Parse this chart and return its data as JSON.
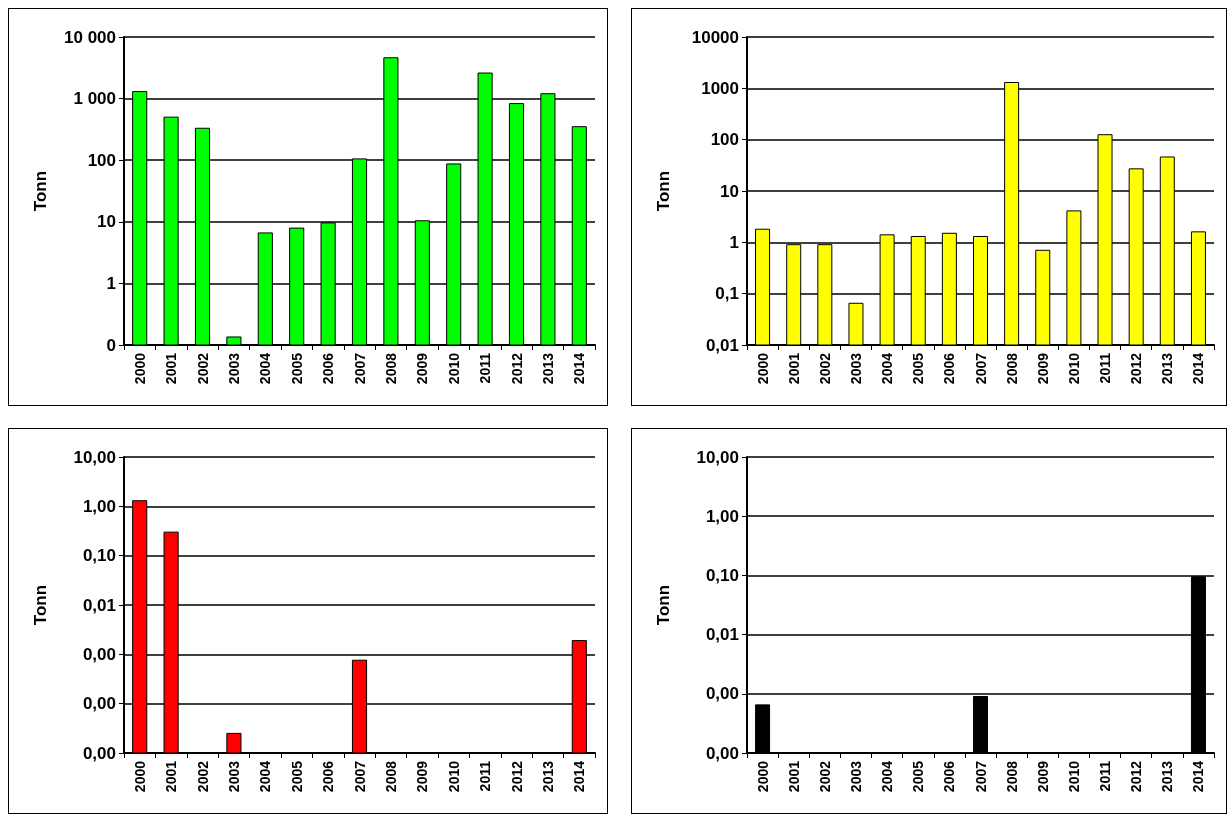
{
  "chart_data": [
    {
      "type": "bar",
      "ylabel": "Tonn",
      "log": true,
      "grid": "y",
      "categories": [
        "2000",
        "2001",
        "2002",
        "2003",
        "2004",
        "2005",
        "2006",
        "2007",
        "2008",
        "2009",
        "2010",
        "2011",
        "2012",
        "2013",
        "2014"
      ],
      "series": [
        {
          "color": "#00ff00",
          "values": [
            1300,
            500,
            330,
            0.135,
            6.6,
            7.9,
            9.6,
            105,
            4600,
            10.4,
            87,
            2600,
            830,
            1200,
            350
          ]
        }
      ],
      "ylim": [
        0.1,
        10000
      ],
      "yticks": [
        {
          "value": 0.1,
          "label": "0"
        },
        1,
        10,
        100,
        {
          "value": 1000,
          "label": "1 000"
        },
        {
          "value": 10000,
          "label": "10 000"
        }
      ]
    },
    {
      "type": "bar",
      "ylabel": "Tonn",
      "log": true,
      "grid": "y",
      "categories": [
        "2000",
        "2001",
        "2002",
        "2003",
        "2004",
        "2005",
        "2006",
        "2007",
        "2008",
        "2009",
        "2010",
        "2011",
        "2012",
        "2013",
        "2014"
      ],
      "series": [
        {
          "color": "#ffff00",
          "values": [
            1.8,
            0.9,
            0.9,
            0.065,
            1.4,
            1.3,
            1.5,
            1.3,
            1300,
            0.7,
            4.1,
            125,
            27,
            46,
            1.6
          ]
        }
      ],
      "ylim": [
        0.01,
        10000
      ],
      "yticks": [
        {
          "value": 0.01,
          "label": "0,01"
        },
        {
          "value": 0.1,
          "label": "0,1"
        },
        1,
        10,
        100,
        1000,
        10000
      ]
    },
    {
      "type": "bar",
      "ylabel": "Tonn",
      "log": true,
      "grid": "y",
      "categories": [
        "2000",
        "2001",
        "2002",
        "2003",
        "2004",
        "2005",
        "2006",
        "2007",
        "2008",
        "2009",
        "2010",
        "2011",
        "2012",
        "2013",
        "2014"
      ],
      "series": [
        {
          "color": "#ff0000",
          "values": [
            1.3,
            0.3,
            null,
            2.5e-05,
            null,
            null,
            null,
            0.00076,
            null,
            null,
            null,
            null,
            null,
            null,
            0.0019
          ]
        }
      ],
      "ylim": [
        1e-05,
        10
      ],
      "yticks": [
        {
          "value": 10,
          "label": "10,00"
        },
        {
          "value": 1,
          "label": "1,00"
        },
        {
          "value": 0.1,
          "label": "0,10"
        },
        {
          "value": 0.01,
          "label": "0,01"
        },
        {
          "value": 0.001,
          "label": "0,00"
        },
        {
          "value": 0.0001,
          "label": "0,00"
        },
        {
          "value": 1e-05,
          "label": "0,00"
        }
      ]
    },
    {
      "type": "bar",
      "ylabel": "Tonn",
      "log": true,
      "grid": "y",
      "categories": [
        "2000",
        "2001",
        "2002",
        "2003",
        "2004",
        "2005",
        "2006",
        "2007",
        "2008",
        "2009",
        "2010",
        "2011",
        "2012",
        "2013",
        "2014"
      ],
      "series": [
        {
          "color": "#000000",
          "values": [
            0.00065,
            null,
            null,
            null,
            null,
            null,
            null,
            0.0009,
            null,
            null,
            null,
            null,
            null,
            null,
            0.095
          ]
        }
      ],
      "ylim": [
        0.0001,
        10
      ],
      "yticks": [
        {
          "value": 10,
          "label": "10,00"
        },
        {
          "value": 1,
          "label": "1,00"
        },
        {
          "value": 0.1,
          "label": "0,10"
        },
        {
          "value": 0.01,
          "label": "0,01"
        },
        {
          "value": 0.001,
          "label": "0,00"
        },
        {
          "value": 0.0001,
          "label": "0,00"
        }
      ]
    }
  ]
}
